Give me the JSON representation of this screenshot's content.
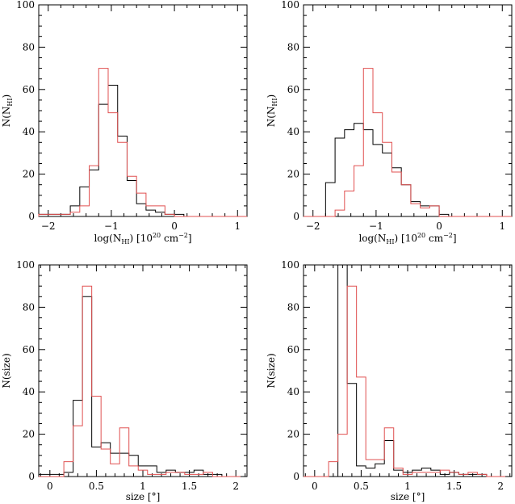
{
  "colors": {
    "axis": "#000000",
    "series_black": "#000000",
    "series_red": "#e05050"
  },
  "chart_data": [
    {
      "type": "histogram",
      "xlabel_main": "log(N",
      "xlabel_sub": "HI",
      "xlabel_tail": ") [10",
      "xlabel_sup": "20",
      "xlabel_end": " cm",
      "xlabel_sup2": "−2",
      "xlabel_close": "]",
      "ylabel_main": "N(N",
      "ylabel_sub": "HI",
      "ylabel_close": ")",
      "xlim": [
        -2.15,
        1.15
      ],
      "ylim": [
        0,
        100
      ],
      "xticks": [
        -2,
        -1,
        0,
        1
      ],
      "xtick_labels": [
        "−2",
        "−1",
        "0",
        "1"
      ],
      "yticks": [
        0,
        20,
        40,
        60,
        80,
        100
      ],
      "ytick_labels": [
        "0",
        "20",
        "40",
        "60",
        "80",
        "100"
      ],
      "bin_edges": [
        -2.15,
        -1.65,
        -1.5,
        -1.35,
        -1.2,
        -1.05,
        -0.9,
        -0.75,
        -0.6,
        -0.45,
        -0.3,
        -0.15,
        0.0,
        0.15,
        0.3,
        0.45,
        1.15
      ],
      "series": [
        {
          "color": "black",
          "values": [
            1,
            5,
            14,
            22,
            53,
            62,
            38,
            17,
            6,
            3,
            2,
            1,
            1,
            0,
            0,
            0
          ]
        },
        {
          "color": "red",
          "values": [
            1,
            2,
            5,
            24,
            70,
            49,
            35,
            19,
            11,
            5,
            5,
            1,
            0,
            0,
            0,
            0
          ]
        }
      ]
    },
    {
      "type": "histogram",
      "xlabel_main": "log(N",
      "xlabel_sub": "HI",
      "xlabel_tail": ") [10",
      "xlabel_sup": "20",
      "xlabel_end": " cm",
      "xlabel_sup2": "−2",
      "xlabel_close": "]",
      "ylabel_main": "N(N",
      "ylabel_sub": "HI",
      "ylabel_close": ")",
      "xlim": [
        -2.15,
        1.15
      ],
      "ylim": [
        0,
        100
      ],
      "xticks": [
        -2,
        -1,
        0,
        1
      ],
      "xtick_labels": [
        "−2",
        "−1",
        "0",
        "1"
      ],
      "yticks": [
        0,
        20,
        40,
        60,
        80,
        100
      ],
      "ytick_labels": [
        "0",
        "20",
        "40",
        "60",
        "80",
        "100"
      ],
      "bin_edges": [
        -2.15,
        -1.8,
        -1.65,
        -1.5,
        -1.35,
        -1.2,
        -1.05,
        -0.9,
        -0.75,
        -0.6,
        -0.45,
        -0.3,
        -0.15,
        0.0,
        0.15,
        0.3,
        1.15
      ],
      "series": [
        {
          "color": "black",
          "values": [
            0,
            16,
            37,
            41,
            44,
            41,
            34,
            30,
            23,
            15,
            7,
            5,
            5,
            1,
            0,
            0
          ]
        },
        {
          "color": "red",
          "values": [
            0,
            0,
            3,
            12,
            24,
            70,
            49,
            35,
            21,
            15,
            6,
            4,
            5,
            0,
            0,
            0
          ]
        }
      ]
    },
    {
      "type": "histogram",
      "xlabel_main": "size [°]",
      "ylabel_main": "N(size)",
      "xlim": [
        -0.12,
        2.12
      ],
      "ylim": [
        0,
        100
      ],
      "xticks": [
        0,
        0.5,
        1,
        1.5,
        2
      ],
      "xtick_labels": [
        "0",
        "0.5",
        "1",
        "1.5",
        "2"
      ],
      "yticks": [
        0,
        20,
        40,
        60,
        80,
        100
      ],
      "ytick_labels": [
        "0",
        "20",
        "40",
        "60",
        "80",
        "100"
      ],
      "bin_edges": [
        -0.12,
        0.15,
        0.25,
        0.35,
        0.45,
        0.55,
        0.65,
        0.75,
        0.85,
        0.95,
        1.05,
        1.15,
        1.25,
        1.35,
        1.45,
        1.55,
        1.65,
        1.75,
        1.85,
        1.95,
        2.05
      ],
      "series": [
        {
          "color": "black",
          "values": [
            1,
            2,
            36,
            85,
            14,
            16,
            11,
            11,
            10,
            5,
            5,
            2,
            3,
            2,
            2,
            3,
            1,
            1,
            0,
            0
          ]
        },
        {
          "color": "red",
          "values": [
            0,
            7,
            24,
            90,
            38,
            13,
            6,
            23,
            5,
            3,
            1,
            1,
            2,
            2,
            1,
            1,
            2,
            0,
            0,
            0
          ]
        }
      ]
    },
    {
      "type": "histogram",
      "xlabel_main": "size [°]",
      "ylabel_main": "N(size)",
      "xlim": [
        -0.12,
        2.12
      ],
      "ylim": [
        0,
        100
      ],
      "xticks": [
        0,
        0.5,
        1,
        1.5,
        2
      ],
      "xtick_labels": [
        "0",
        "0.5",
        "1",
        "1.5",
        "2"
      ],
      "yticks": [
        0,
        20,
        40,
        60,
        80,
        100
      ],
      "ytick_labels": [
        "0",
        "20",
        "40",
        "60",
        "80",
        "100"
      ],
      "bin_edges": [
        -0.12,
        0.15,
        0.25,
        0.35,
        0.45,
        0.55,
        0.65,
        0.75,
        0.85,
        0.95,
        1.05,
        1.15,
        1.25,
        1.35,
        1.45,
        1.55,
        1.65,
        1.75,
        1.85,
        1.95,
        2.05
      ],
      "series": [
        {
          "color": "black",
          "values": [
            0,
            0,
            100,
            44,
            5,
            4,
            6,
            17,
            3,
            2,
            3,
            4,
            3,
            1,
            2,
            1,
            1,
            1,
            0,
            0
          ]
        },
        {
          "color": "red",
          "values": [
            0,
            7,
            20,
            90,
            47,
            8,
            8,
            23,
            4,
            1,
            2,
            2,
            2,
            3,
            2,
            1,
            2,
            1,
            0,
            0
          ]
        }
      ]
    }
  ]
}
